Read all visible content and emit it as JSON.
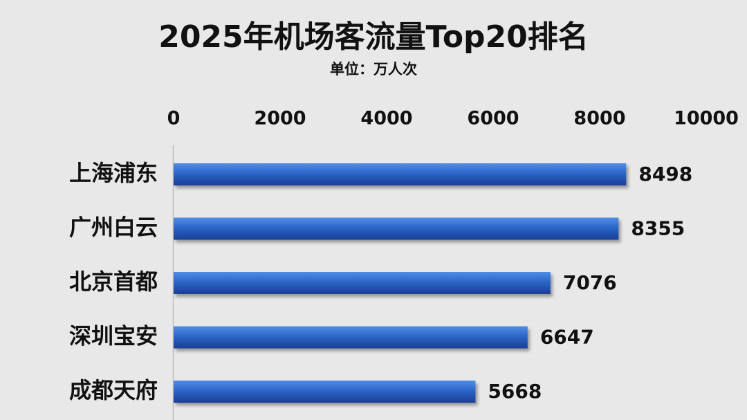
{
  "chart_data": {
    "type": "bar",
    "orientation": "horizontal",
    "title": "2025年机场客流量Top20排名",
    "subtitle": "单位：万人次",
    "categories": [
      "上海浦东",
      "广州白云",
      "北京首都",
      "深圳宝安",
      "成都天府"
    ],
    "values": [
      8498,
      8355,
      7076,
      6647,
      5668
    ],
    "color": "#2a62c4",
    "xlim": [
      0,
      10000
    ],
    "xticks": [
      0,
      2000,
      4000,
      6000,
      8000,
      10000
    ],
    "grid": false
  }
}
